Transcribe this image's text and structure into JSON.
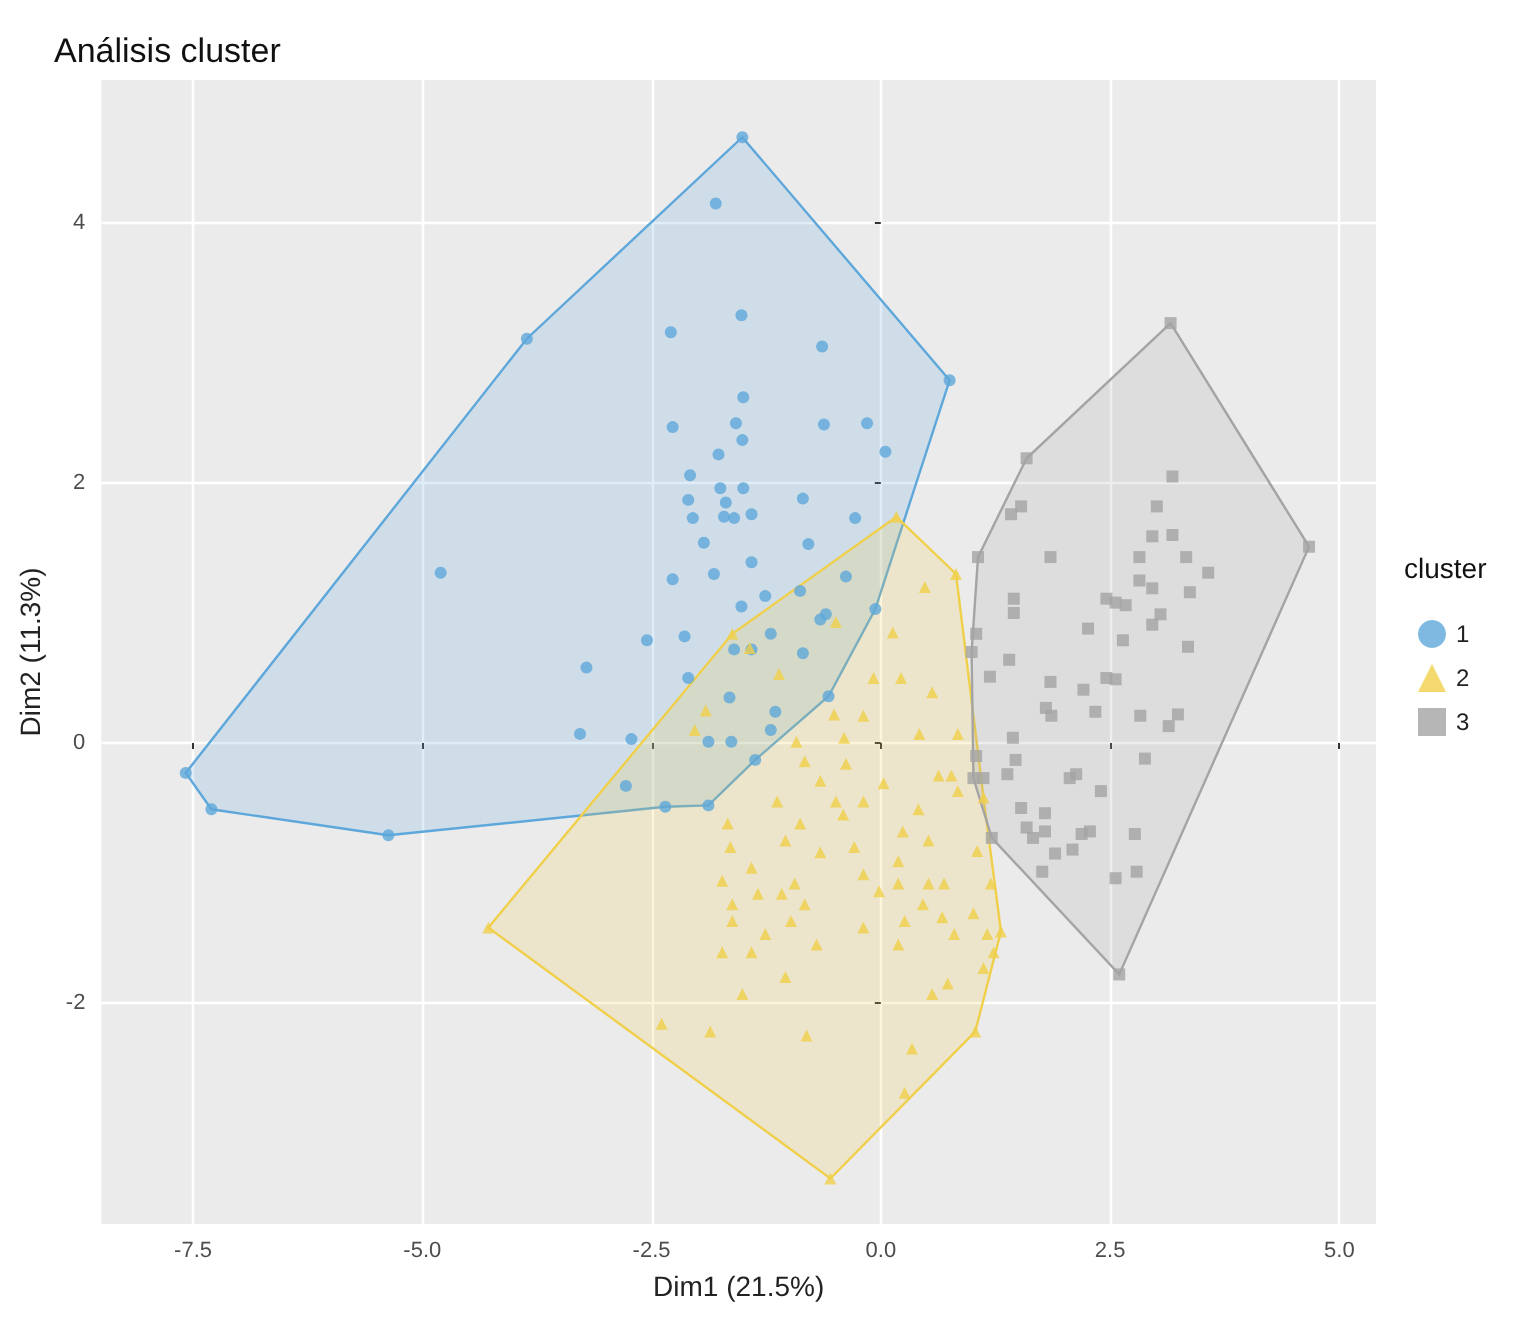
{
  "chart_data": {
    "type": "scatter",
    "title": "Análisis cluster",
    "xlabel": "Dim1 (21.5%)",
    "ylabel": "Dim2 (11.3%)",
    "legend_title": "cluster",
    "legend": "right",
    "grid": true,
    "xlim": [
      -8.5,
      5.4
    ],
    "ylim": [
      -3.7,
      5.1
    ],
    "xticks": [
      {
        "value": -7.5,
        "label": "-7.5"
      },
      {
        "value": -5,
        "label": "-5.0"
      },
      {
        "value": -2.5,
        "label": "-2.5"
      },
      {
        "value": 0,
        "label": "0.0"
      },
      {
        "value": 2.5,
        "label": "2.5"
      },
      {
        "value": 5,
        "label": "5.0"
      }
    ],
    "yticks": [
      -2,
      0,
      2,
      4
    ],
    "series": [
      {
        "type": "area",
        "color": "#5ea7da",
        "x": [
          -1.51,
          0.75,
          -0.06,
          -0.57,
          -1.37,
          -1.88,
          -2.35,
          -5.37,
          -7.3,
          -7.58,
          -3.86,
          -1.51
        ],
        "values": [
          4.66,
          2.79,
          1.03,
          0.36,
          -0.13,
          -0.48,
          -0.49,
          -0.71,
          -0.51,
          -0.23,
          3.11,
          4.66
        ]
      },
      {
        "type": "area",
        "color": "#f0cf4a",
        "x": [
          0.17,
          0.82,
          1.12,
          1.31,
          1.03,
          -0.55,
          -4.28,
          -1.62,
          0.17
        ],
        "values": [
          1.74,
          1.3,
          -0.42,
          -1.45,
          -2.22,
          -3.35,
          -1.42,
          0.84,
          1.74
        ]
      },
      {
        "type": "area",
        "color": "#a4a4a4",
        "x": [
          3.16,
          4.67,
          2.6,
          1.21,
          1.01,
          0.99,
          1.06,
          1.59,
          3.16
        ],
        "values": [
          3.23,
          1.51,
          -1.78,
          -0.73,
          -0.27,
          0.7,
          1.43,
          2.19,
          3.23
        ]
      },
      {
        "name": "1",
        "color": "#5ea7da",
        "marker": "circle",
        "x": [
          -1.51,
          0.75,
          -0.06,
          -0.57,
          -1.37,
          -1.88,
          -2.35,
          -5.37,
          -7.3,
          -7.58,
          -3.86,
          -1.8,
          -1.52,
          -2.29,
          -0.64,
          -1.5,
          -2.27,
          -1.58,
          -0.62,
          -0.15,
          -1.51,
          -1.77,
          0.05,
          -2.08,
          -1.75,
          -1.5,
          -2.1,
          -1.69,
          -0.85,
          -2.05,
          -1.71,
          -1.6,
          -1.41,
          -0.28,
          -1.93,
          -0.79,
          -1.41,
          -4.8,
          -2.27,
          -1.82,
          -0.38,
          -1.52,
          -1.26,
          -0.88,
          -0.6,
          -0.66,
          -2.55,
          -2.14,
          -1.2,
          -1.6,
          -1.41,
          -0.85,
          -3.21,
          -2.1,
          -1.65,
          -1.15,
          -1.2,
          -3.28,
          -2.72,
          -1.88,
          -1.63,
          -2.78
        ],
        "values": [
          4.66,
          2.79,
          1.03,
          0.36,
          -0.13,
          -0.48,
          -0.49,
          -0.71,
          -0.51,
          -0.23,
          3.11,
          4.15,
          3.29,
          3.16,
          3.05,
          2.66,
          2.43,
          2.46,
          2.45,
          2.46,
          2.33,
          2.22,
          2.24,
          2.06,
          1.96,
          1.96,
          1.87,
          1.85,
          1.88,
          1.73,
          1.74,
          1.73,
          1.76,
          1.73,
          1.54,
          1.53,
          1.39,
          1.31,
          1.26,
          1.3,
          1.28,
          1.05,
          1.13,
          1.17,
          0.99,
          0.95,
          0.79,
          0.82,
          0.84,
          0.72,
          0.72,
          0.69,
          0.58,
          0.5,
          0.35,
          0.24,
          0.1,
          0.07,
          0.03,
          0.01,
          0.01,
          -0.33
        ]
      },
      {
        "name": "2",
        "color": "#f0cf4a",
        "marker": "triangle",
        "x": [
          0.17,
          0.82,
          1.12,
          1.31,
          1.03,
          -0.55,
          -4.28,
          -1.62,
          0.48,
          0.13,
          -0.49,
          -1.43,
          -1.11,
          -1.91,
          -2.03,
          -0.08,
          0.22,
          0.56,
          -0.51,
          -0.19,
          0.42,
          0.84,
          -0.92,
          -0.4,
          -0.38,
          -0.83,
          0.03,
          0.63,
          0.77,
          -0.66,
          -1.13,
          -0.49,
          -0.19,
          0.41,
          0.84,
          -1.67,
          -0.88,
          -0.41,
          0.24,
          0.52,
          -1.04,
          -0.29,
          -1.64,
          -0.66,
          -1.41,
          0.19,
          1.05,
          -0.19,
          -1.73,
          -1.34,
          -0.94,
          -1.08,
          -0.02,
          0.19,
          0.52,
          0.69,
          1.2,
          -1.62,
          -0.83,
          0.46,
          -1.62,
          -0.98,
          -0.19,
          0.26,
          0.67,
          1.01,
          -1.26,
          -0.7,
          0.19,
          0.8,
          1.16,
          -1.73,
          -1.41,
          1.23,
          -1.04,
          -1.51,
          0.56,
          0.73,
          1.12,
          -2.39,
          -1.86,
          -0.81,
          0.34,
          0.26
        ],
        "values": [
          1.74,
          1.3,
          -0.42,
          -1.45,
          -2.22,
          -3.35,
          -1.42,
          0.84,
          1.2,
          0.85,
          0.93,
          0.73,
          0.53,
          0.25,
          0.1,
          0.5,
          0.5,
          0.39,
          0.22,
          0.21,
          0.07,
          0.07,
          0.01,
          0.04,
          -0.16,
          -0.14,
          -0.31,
          -0.25,
          -0.25,
          -0.29,
          -0.45,
          -0.45,
          -0.45,
          -0.51,
          -0.37,
          -0.62,
          -0.62,
          -0.55,
          -0.68,
          -0.75,
          -0.75,
          -0.8,
          -0.8,
          -0.84,
          -0.96,
          -0.91,
          -0.83,
          -1.01,
          -1.06,
          -1.16,
          -1.08,
          -1.16,
          -1.14,
          -1.08,
          -1.08,
          -1.08,
          -1.08,
          -1.24,
          -1.24,
          -1.24,
          -1.37,
          -1.37,
          -1.42,
          -1.37,
          -1.34,
          -1.31,
          -1.47,
          -1.55,
          -1.55,
          -1.47,
          -1.47,
          -1.61,
          -1.61,
          -1.61,
          -1.8,
          -1.93,
          -1.93,
          -1.85,
          -1.73,
          -2.16,
          -2.22,
          -2.25,
          -2.35,
          -2.69
        ]
      },
      {
        "name": "3",
        "color": "#a4a4a4",
        "marker": "square",
        "x": [
          3.16,
          4.67,
          2.6,
          1.21,
          1.01,
          0.99,
          1.06,
          1.59,
          3.18,
          1.53,
          1.42,
          3.01,
          2.96,
          3.18,
          1.85,
          2.82,
          3.33,
          3.57,
          2.82,
          2.96,
          3.37,
          1.45,
          1.45,
          2.46,
          2.56,
          2.67,
          3.05,
          2.96,
          2.26,
          3.35,
          2.64,
          1.4,
          1.19,
          1.85,
          2.21,
          2.46,
          2.56,
          1.8,
          1.86,
          2.34,
          2.83,
          3.24,
          3.14,
          1.44,
          2.88,
          1.47,
          1.38,
          2.06,
          2.13,
          2.4,
          1.53,
          1.79,
          1.59,
          1.66,
          1.79,
          2.19,
          2.28,
          2.77,
          1.9,
          2.09,
          1.76,
          2.56,
          2.79,
          1.04,
          1.04,
          1.12
        ],
        "values": [
          3.23,
          1.51,
          -1.78,
          -0.73,
          -0.27,
          0.7,
          1.43,
          2.19,
          2.05,
          1.82,
          1.76,
          1.82,
          1.59,
          1.6,
          1.43,
          1.43,
          1.43,
          1.31,
          1.25,
          1.19,
          1.16,
          1.11,
          1.0,
          1.11,
          1.08,
          1.06,
          0.99,
          0.91,
          0.88,
          0.74,
          0.79,
          0.64,
          0.51,
          0.47,
          0.41,
          0.5,
          0.49,
          0.27,
          0.21,
          0.24,
          0.21,
          0.22,
          0.13,
          0.04,
          -0.12,
          -0.13,
          -0.24,
          -0.27,
          -0.24,
          -0.37,
          -0.5,
          -0.54,
          -0.65,
          -0.73,
          -0.68,
          -0.7,
          -0.68,
          -0.7,
          -0.85,
          -0.82,
          -0.99,
          -1.04,
          -0.99,
          0.84,
          -0.1,
          -0.27
        ]
      }
    ]
  }
}
